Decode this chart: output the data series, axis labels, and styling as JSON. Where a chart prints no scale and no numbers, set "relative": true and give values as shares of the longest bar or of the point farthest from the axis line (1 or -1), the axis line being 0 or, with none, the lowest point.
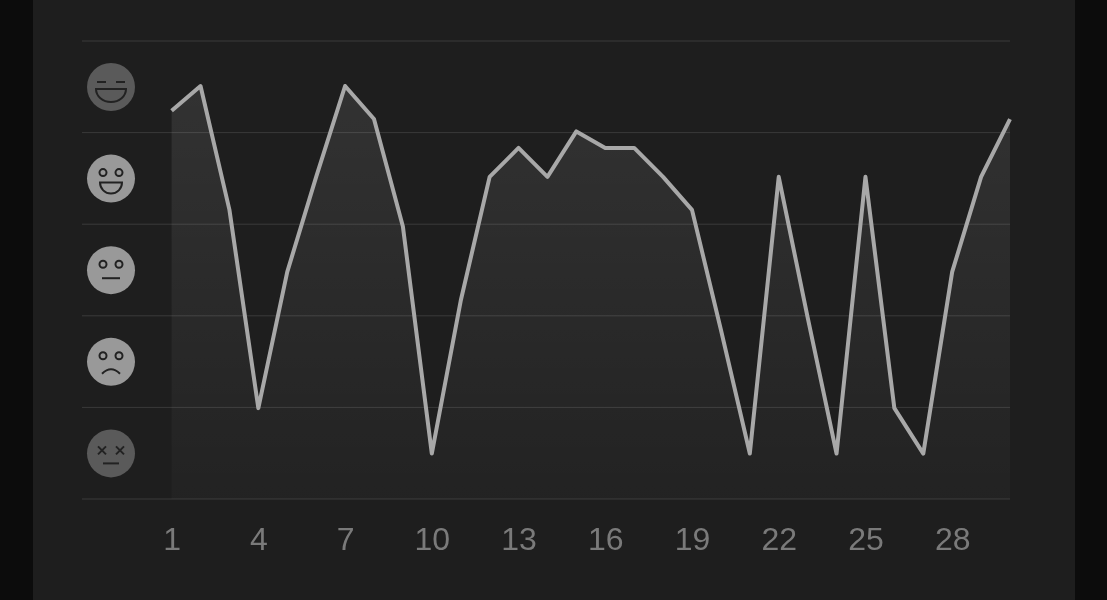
{
  "chart_data": {
    "type": "area",
    "relative": true,
    "grid": true,
    "x": [
      1,
      2,
      3,
      4,
      5,
      6,
      7,
      8,
      9,
      10,
      11,
      12,
      13,
      14,
      15,
      16,
      17,
      18,
      19,
      20,
      21,
      22,
      23,
      24,
      25,
      26,
      27,
      28,
      29,
      30
    ],
    "xlim": [
      -2.1,
      30
    ],
    "xticks": [
      1,
      4,
      7,
      10,
      13,
      16,
      19,
      22,
      25,
      28
    ],
    "series": [
      {
        "color": "#a8a8a8",
        "values": [
          0.94,
          1,
          0.7,
          0.22,
          0.55,
          0.78,
          1,
          0.92,
          0.66,
          0.11,
          0.48,
          0.78,
          0.85,
          0.78,
          0.89,
          0.85,
          0.85,
          0.78,
          0.7,
          0.41,
          0.11,
          0.78,
          0.44,
          0.11,
          0.78,
          0.22,
          0.11,
          0.55,
          0.78,
          0.92
        ]
      }
    ]
  }
}
